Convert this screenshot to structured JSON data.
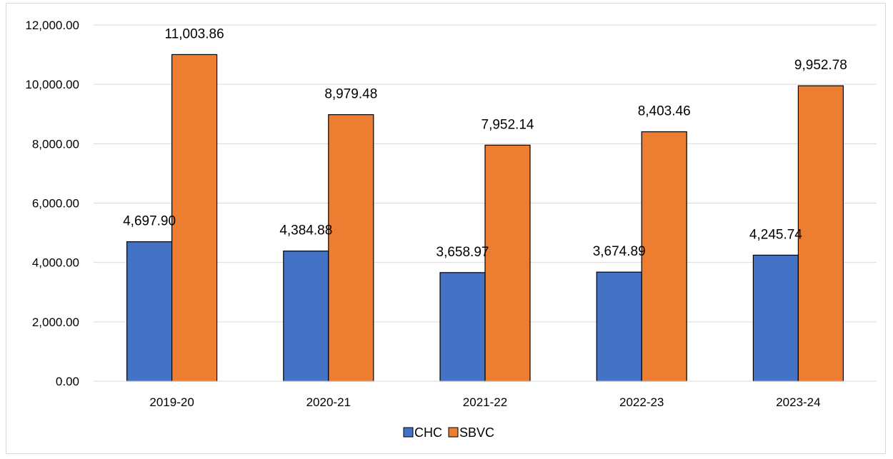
{
  "chart_data": {
    "type": "bar",
    "categories": [
      "2019-20",
      "2020-21",
      "2021-22",
      "2022-23",
      "2023-24"
    ],
    "series": [
      {
        "name": "CHC",
        "color": "#4472C4",
        "values": [
          4697.9,
          4384.88,
          3658.97,
          3674.89,
          4245.74
        ],
        "labels": [
          "4,697.90",
          "4,384.88",
          "3,658.97",
          "3,674.89",
          "4,245.74"
        ]
      },
      {
        "name": "SBVC",
        "color": "#ED7D31",
        "values": [
          11003.86,
          8979.48,
          7952.14,
          8403.46,
          9952.78
        ],
        "labels": [
          "11,003.86",
          "8,979.48",
          "7,952.14",
          "8,403.46",
          "9,952.78"
        ]
      }
    ],
    "yticks": [
      0,
      2000,
      4000,
      6000,
      8000,
      10000,
      12000
    ],
    "ytick_labels": [
      "0.00",
      "2,000.00",
      "4,000.00",
      "6,000.00",
      "8,000.00",
      "10,000.00",
      "12,000.00"
    ],
    "ylim": [
      0,
      12000
    ],
    "grid": true,
    "legend_position": "bottom",
    "title": "",
    "xlabel": "",
    "ylabel": ""
  }
}
